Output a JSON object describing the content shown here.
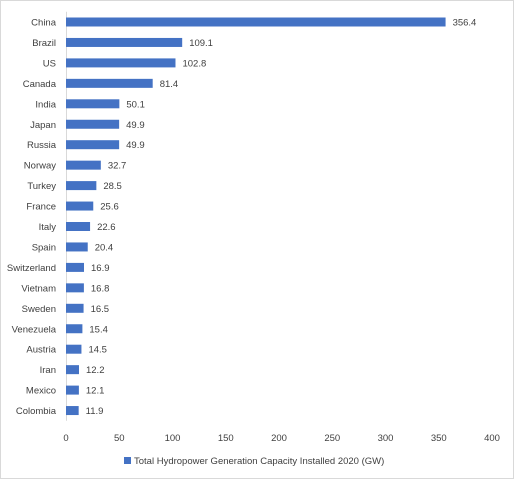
{
  "chart_data": {
    "type": "bar",
    "orientation": "horizontal",
    "categories": [
      "China",
      "Brazil",
      "US",
      "Canada",
      "India",
      "Japan",
      "Russia",
      "Norway",
      "Turkey",
      "France",
      "Italy",
      "Spain",
      "Switzerland",
      "Vietnam",
      "Sweden",
      "Venezuela",
      "Austria",
      "Iran",
      "Mexico",
      "Colombia"
    ],
    "series": [
      {
        "name": "Total Hydropower Generation Capacity Installed 2020 (GW)",
        "color": "#4472c4",
        "values": [
          356.4,
          109.1,
          102.8,
          81.4,
          50.1,
          49.9,
          49.9,
          32.7,
          28.5,
          25.6,
          22.6,
          20.4,
          16.9,
          16.8,
          16.5,
          15.4,
          14.5,
          12.2,
          12.1,
          11.9
        ],
        "data_labels": [
          "356.4",
          "109.1",
          "102.8",
          "81.4",
          "50.1",
          "49.9",
          "49.9",
          "32.7",
          "28.5",
          "25.6",
          "22.6",
          "20.4",
          "16.9",
          "16.8",
          "16.5",
          "15.4",
          "14.5",
          "12.2",
          "12.1",
          "11.9"
        ]
      }
    ],
    "xlim": [
      0,
      400
    ],
    "xticks": [
      "0",
      "50",
      "100",
      "150",
      "200",
      "250",
      "300",
      "350",
      "400"
    ],
    "grid": false,
    "legend_position": "bottom"
  }
}
